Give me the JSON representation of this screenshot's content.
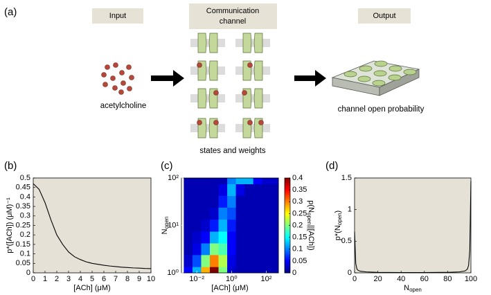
{
  "figure": {
    "panel_a": {
      "label": "(a)",
      "input": "Input",
      "channel_line1": "Communication",
      "channel_line2": "channel",
      "output": "Output",
      "input_caption": "acetylcholine",
      "channel_caption": "states and weights",
      "output_caption": "channel open probability"
    }
  },
  "chart_data": [
    {
      "type": "line",
      "panel": "(b)",
      "color": "#000000",
      "background": "#e5e1d6",
      "x": [
        0,
        0.5,
        1,
        1.5,
        2,
        2.5,
        3,
        3.5,
        4,
        4.5,
        5,
        5.5,
        6,
        6.5,
        7,
        7.5,
        8,
        8.5,
        9,
        9.5,
        10
      ],
      "values": [
        0.47,
        0.44,
        0.37,
        0.28,
        0.2,
        0.15,
        0.11,
        0.085,
        0.07,
        0.058,
        0.05,
        0.045,
        0.04,
        0.036,
        0.033,
        0.03,
        0.028,
        0.026,
        0.025,
        0.023,
        0.022
      ],
      "xlim": [
        0,
        10
      ],
      "xticks": [
        0,
        1,
        2,
        3,
        4,
        5,
        6,
        7,
        8,
        9,
        10
      ],
      "ylim": [
        0,
        0.5
      ],
      "yticks": [
        0,
        0.05,
        0.1,
        0.15,
        0.2,
        0.25,
        0.3,
        0.35,
        0.4,
        0.45,
        0.5
      ],
      "xlabel": "[ACh] (μM)",
      "ylabel": "p*([ACh]) (μM)⁻¹"
    },
    {
      "type": "heatmap",
      "panel": "(c)",
      "xscale": "log",
      "yscale": "log",
      "x": [
        0.00316,
        0.01,
        0.0316,
        0.1,
        0.316,
        1,
        3.16,
        10,
        31.6,
        100,
        316
      ],
      "y": [
        1,
        1.8,
        3.2,
        5.6,
        10,
        18,
        32,
        56,
        100
      ],
      "z": [
        [
          0.05,
          0.12,
          0.28,
          0.4,
          0.2,
          0.03,
          0.02,
          0.02,
          0.02,
          0.02,
          0.02
        ],
        [
          0.03,
          0.08,
          0.2,
          0.3,
          0.22,
          0.04,
          0.02,
          0.02,
          0.02,
          0.02,
          0.02
        ],
        [
          0.02,
          0.04,
          0.1,
          0.2,
          0.18,
          0.05,
          0.02,
          0.02,
          0.02,
          0.02,
          0.02
        ],
        [
          0.02,
          0.03,
          0.05,
          0.12,
          0.15,
          0.05,
          0.02,
          0.02,
          0.02,
          0.02,
          0.02
        ],
        [
          0.02,
          0.02,
          0.03,
          0.06,
          0.12,
          0.06,
          0.02,
          0.02,
          0.02,
          0.02,
          0.02
        ],
        [
          0.02,
          0.02,
          0.02,
          0.03,
          0.1,
          0.08,
          0.02,
          0.02,
          0.02,
          0.02,
          0.02
        ],
        [
          0.02,
          0.02,
          0.02,
          0.02,
          0.06,
          0.1,
          0.02,
          0.02,
          0.02,
          0.02,
          0.02
        ],
        [
          0.02,
          0.02,
          0.02,
          0.02,
          0.04,
          0.12,
          0.04,
          0.02,
          0.02,
          0.02,
          0.02
        ],
        [
          0.02,
          0.02,
          0.02,
          0.02,
          0.02,
          0.1,
          0.12,
          0.12,
          0.05,
          0.03,
          0.03
        ]
      ],
      "xlim": [
        0.0013,
        500
      ],
      "xticks": [
        {
          "value": 0.01,
          "label": "10⁻²"
        },
        {
          "value": 1,
          "label": "10⁰"
        },
        {
          "value": 100,
          "label": "10²"
        }
      ],
      "ylim": [
        1,
        100
      ],
      "yticks": [
        {
          "value": 1,
          "label": "10⁰"
        },
        {
          "value": 10,
          "label": "10¹"
        },
        {
          "value": 100,
          "label": "10²"
        }
      ],
      "clim": [
        0,
        0.4
      ],
      "cticks": [
        0,
        0.05,
        0.1,
        0.15,
        0.2,
        0.25,
        0.3,
        0.35,
        0.4
      ],
      "colormap": "jet",
      "xlabel": "[ACh] (μM)",
      "ylabel": {
        "main": "N",
        "sub": "open"
      },
      "clabel": {
        "main": "p(N",
        "sub": "open",
        "tail": "||[ACh])"
      }
    },
    {
      "type": "line",
      "panel": "(d)",
      "color": "#000000",
      "background": "#e5e1d6",
      "x": [
        0,
        1,
        2,
        3,
        5,
        10,
        20,
        40,
        60,
        80,
        90,
        95,
        97,
        98,
        99,
        100
      ],
      "values": [
        0.65,
        0.15,
        0.06,
        0.04,
        0.025,
        0.015,
        0.008,
        0.005,
        0.005,
        0.008,
        0.015,
        0.03,
        0.06,
        0.12,
        0.35,
        1.45
      ],
      "xlim": [
        0,
        100
      ],
      "xticks": [
        0,
        20,
        40,
        60,
        80,
        100
      ],
      "ylim": [
        0,
        1.5
      ],
      "yticks": [
        0,
        0.5,
        1,
        1.5
      ],
      "xlabel": {
        "main": "N",
        "sub": "open"
      },
      "ylabel": {
        "main": "p*(N",
        "sub": "open",
        "tail": ")"
      }
    }
  ]
}
